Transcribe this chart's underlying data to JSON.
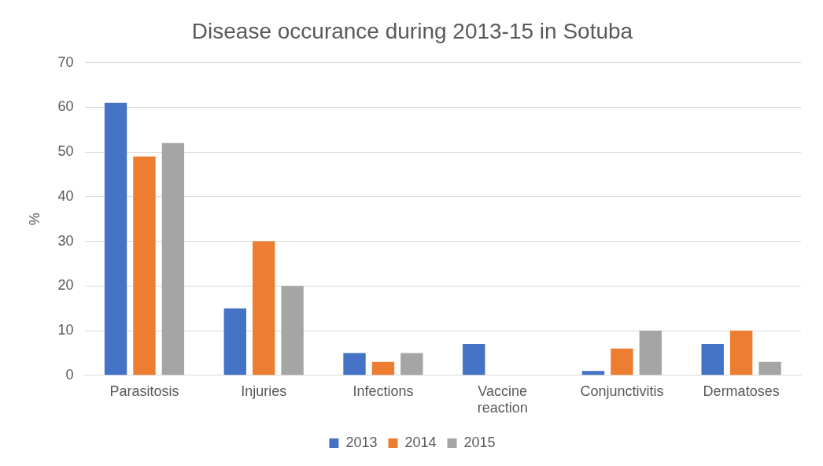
{
  "chart_data": {
    "type": "bar",
    "title": "Disease occurance during 2013-15 in Sotuba",
    "ylabel": "%",
    "categories": [
      "Parasitosis",
      "Injuries",
      "Infections",
      "Vaccine reaction",
      "Conjunctivitis",
      "Dermatoses"
    ],
    "series": [
      {
        "name": "2013",
        "color": "#4472c4",
        "values": [
          61,
          15,
          5,
          7,
          1,
          7
        ]
      },
      {
        "name": "2014",
        "color": "#ed7d31",
        "values": [
          49,
          30,
          3,
          0,
          6,
          10
        ]
      },
      {
        "name": "2015",
        "color": "#a5a5a5",
        "values": [
          52,
          20,
          5,
          0,
          10,
          3
        ]
      }
    ],
    "ylim": [
      0,
      70
    ],
    "yticks": [
      0,
      10,
      20,
      30,
      40,
      50,
      60,
      70
    ],
    "grid": "y",
    "legend": "bottom"
  }
}
